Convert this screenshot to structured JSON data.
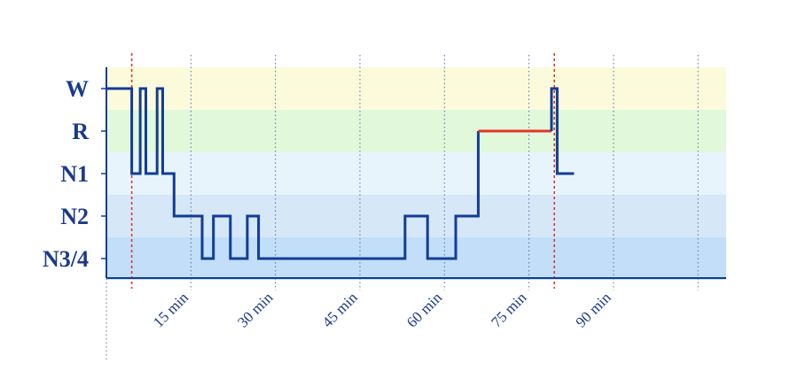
{
  "chart_data": {
    "type": "line",
    "subtype": "step",
    "stages": [
      "W",
      "R",
      "N1",
      "N2",
      "N3/4"
    ],
    "band_colors": {
      "W": "#fbfbdc",
      "R": "#e2f8da",
      "N1": "#e8f4fc",
      "N2": "#d6e7f8",
      "N3/4": "#c2def8"
    },
    "x_unit": "min",
    "xlim": [
      0,
      110
    ],
    "x_ticks": [
      {
        "value": 15,
        "label": "15 min"
      },
      {
        "value": 30,
        "label": "30 min"
      },
      {
        "value": 45,
        "label": "45 min"
      },
      {
        "value": 60,
        "label": "60 min"
      },
      {
        "value": 75,
        "label": "75 min"
      },
      {
        "value": 90,
        "label": "90 min"
      }
    ],
    "grid_minutes": [
      15,
      30,
      45,
      60,
      75,
      90,
      105
    ],
    "markers_minutes": [
      4.5,
      79.5
    ],
    "series": [
      {
        "color": "#123c96",
        "points": [
          [
            0,
            "W"
          ],
          [
            4.5,
            "W"
          ],
          [
            4.5,
            "N1"
          ],
          [
            6,
            "N1"
          ],
          [
            6,
            "W"
          ],
          [
            7,
            "W"
          ],
          [
            7,
            "N1"
          ],
          [
            9,
            "N1"
          ],
          [
            9,
            "W"
          ],
          [
            10,
            "W"
          ],
          [
            10,
            "N1"
          ],
          [
            12,
            "N1"
          ],
          [
            12,
            "N2"
          ],
          [
            17,
            "N2"
          ],
          [
            17,
            "N3/4"
          ],
          [
            19,
            "N3/4"
          ],
          [
            19,
            "N2"
          ],
          [
            22,
            "N2"
          ],
          [
            22,
            "N3/4"
          ],
          [
            25,
            "N3/4"
          ],
          [
            25,
            "N2"
          ],
          [
            27,
            "N2"
          ],
          [
            27,
            "N3/4"
          ],
          [
            53,
            "N3/4"
          ],
          [
            53,
            "N2"
          ],
          [
            57,
            "N2"
          ],
          [
            57,
            "N3/4"
          ],
          [
            62,
            "N3/4"
          ],
          [
            62,
            "N2"
          ],
          [
            66,
            "N2"
          ],
          [
            66,
            "R"
          ]
        ]
      },
      {
        "color": "#e2352b",
        "points": [
          [
            66,
            "R"
          ],
          [
            79,
            "R"
          ]
        ]
      },
      {
        "color": "#123c96",
        "points": [
          [
            79,
            "R"
          ],
          [
            79,
            "W"
          ],
          [
            80,
            "W"
          ],
          [
            80,
            "N1"
          ],
          [
            83,
            "N1"
          ]
        ]
      }
    ],
    "colors": {
      "axis": "#123c96",
      "marker": "#e2352b",
      "grid": "#5a6ea8",
      "text": "#1a3a8a"
    }
  }
}
